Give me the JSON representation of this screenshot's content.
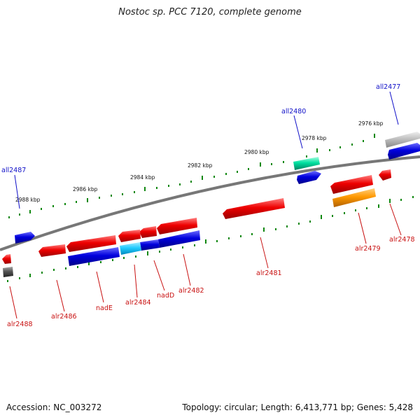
{
  "title": "Nostoc sp. PCC 7120, complete genome",
  "footer": {
    "accession": "Accession: NC_003272",
    "summary": "Topology: circular; Length: 6,413,771 bp; Genes: 5,428"
  },
  "kbp_labels": [
    "2976 kbp",
    "2978 kbp",
    "2980 kbp",
    "2982 kbp",
    "2984 kbp",
    "2986 kbp",
    "2988 kbp"
  ],
  "gene_labels": {
    "all2477": "all2477",
    "all2480": "all2480",
    "all2487": "all2487",
    "alr2478": "alr2478",
    "alr2479": "alr2479",
    "alr2481": "alr2481",
    "alr2482": "alr2482",
    "nadD": "nadD",
    "alr2484": "alr2484",
    "nadE": "nadE",
    "alr2486": "alr2486",
    "alr2488": "alr2488"
  },
  "colors": {
    "red": "#ee0000",
    "blue": "#0000dd",
    "green": "#00e0a0",
    "orange": "#ff9900",
    "cyan": "#22ccff",
    "gray": "#bbbbbb",
    "darkgray": "#555555",
    "backbone": "#777777",
    "tick": "#118811",
    "label_blue": "#1010c8",
    "label_red": "#c81010"
  }
}
